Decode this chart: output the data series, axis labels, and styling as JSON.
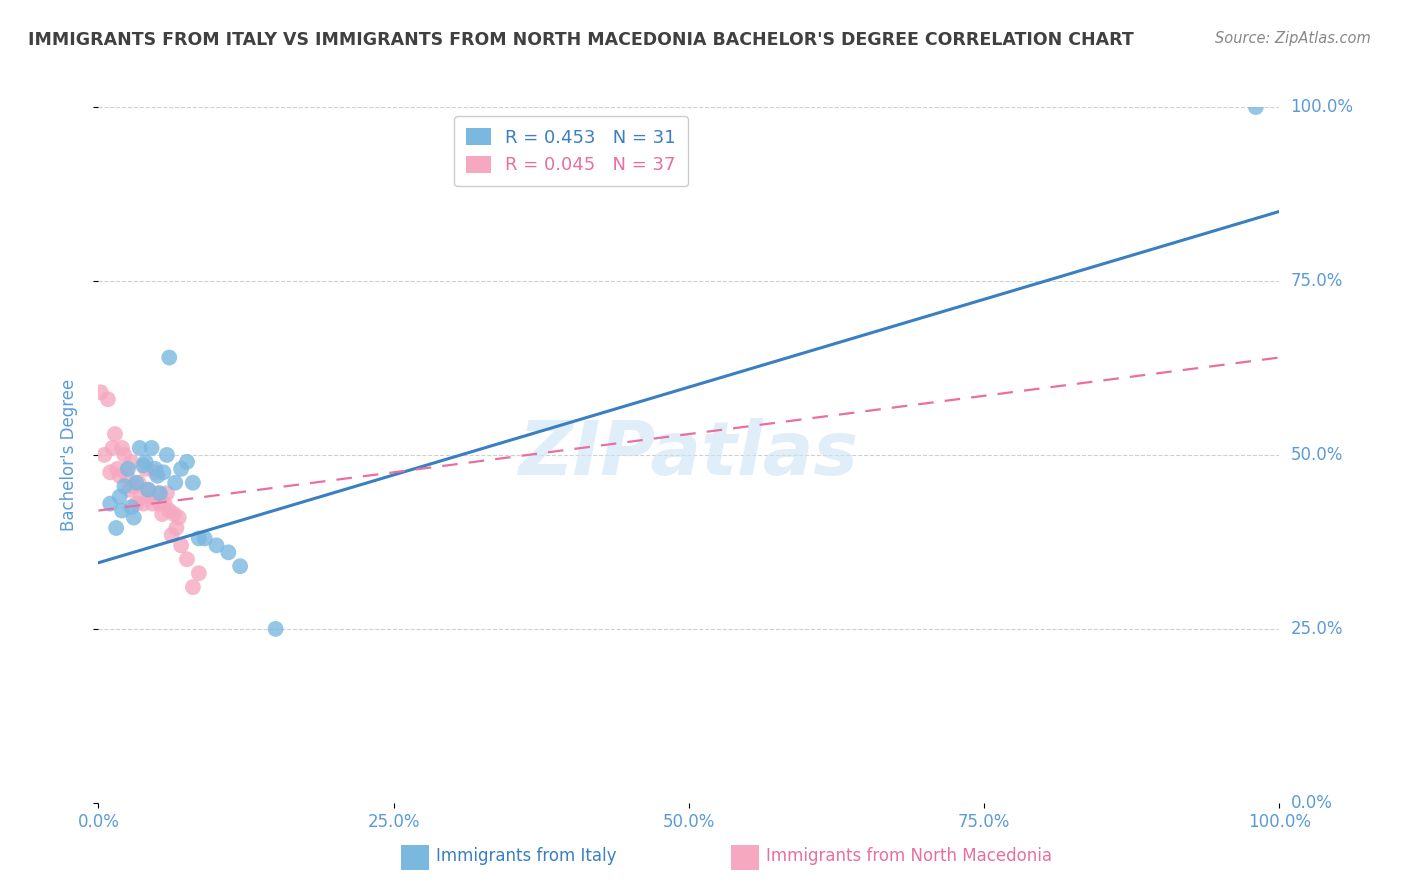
{
  "title": "IMMIGRANTS FROM ITALY VS IMMIGRANTS FROM NORTH MACEDONIA BACHELOR'S DEGREE CORRELATION CHART",
  "source": "Source: ZipAtlas.com",
  "ylabel": "Bachelor's Degree",
  "xlim": [
    0.0,
    1.0
  ],
  "ylim": [
    0.0,
    1.0
  ],
  "xticks": [
    0.0,
    0.25,
    0.5,
    0.75,
    1.0
  ],
  "xtick_labels": [
    "0.0%",
    "25.0%",
    "50.0%",
    "75.0%",
    "100.0%"
  ],
  "ytick_vals": [
    0.0,
    0.25,
    0.5,
    0.75,
    1.0
  ],
  "ytick_labels_right": [
    "0.0%",
    "25.0%",
    "50.0%",
    "75.0%",
    "100.0%"
  ],
  "italy_R": 0.453,
  "italy_N": 31,
  "macedonia_R": 0.045,
  "macedonia_N": 37,
  "italy_color": "#7bb8e0",
  "macedonia_color": "#f5a8c0",
  "italy_line_color": "#3a7fc1",
  "macedonia_line_color": "#e86fa0",
  "watermark": "ZIPatlas",
  "italy_scatter_x": [
    0.01,
    0.015,
    0.018,
    0.02,
    0.022,
    0.025,
    0.028,
    0.03,
    0.032,
    0.035,
    0.038,
    0.04,
    0.042,
    0.045,
    0.048,
    0.05,
    0.052,
    0.055,
    0.058,
    0.06,
    0.065,
    0.07,
    0.075,
    0.08,
    0.085,
    0.09,
    0.1,
    0.11,
    0.12,
    0.15,
    0.98
  ],
  "italy_scatter_y": [
    0.43,
    0.395,
    0.44,
    0.42,
    0.455,
    0.48,
    0.425,
    0.41,
    0.46,
    0.51,
    0.485,
    0.49,
    0.45,
    0.51,
    0.48,
    0.47,
    0.445,
    0.475,
    0.5,
    0.64,
    0.46,
    0.48,
    0.49,
    0.46,
    0.38,
    0.38,
    0.37,
    0.36,
    0.34,
    0.25,
    1.0
  ],
  "macedonia_scatter_x": [
    0.002,
    0.005,
    0.008,
    0.01,
    0.012,
    0.014,
    0.016,
    0.018,
    0.02,
    0.022,
    0.024,
    0.026,
    0.028,
    0.03,
    0.032,
    0.034,
    0.036,
    0.038,
    0.04,
    0.042,
    0.044,
    0.046,
    0.048,
    0.05,
    0.052,
    0.054,
    0.056,
    0.058,
    0.06,
    0.062,
    0.064,
    0.066,
    0.068,
    0.07,
    0.075,
    0.08,
    0.085
  ],
  "macedonia_scatter_y": [
    0.59,
    0.5,
    0.58,
    0.475,
    0.51,
    0.53,
    0.48,
    0.47,
    0.51,
    0.5,
    0.47,
    0.45,
    0.49,
    0.455,
    0.43,
    0.46,
    0.44,
    0.43,
    0.48,
    0.45,
    0.44,
    0.43,
    0.475,
    0.445,
    0.43,
    0.415,
    0.43,
    0.445,
    0.42,
    0.385,
    0.415,
    0.395,
    0.41,
    0.37,
    0.35,
    0.31,
    0.33
  ],
  "italy_line_x0": 0.0,
  "italy_line_y0": 0.345,
  "italy_line_x1": 1.0,
  "italy_line_y1": 0.85,
  "mac_line_x0": 0.0,
  "mac_line_y0": 0.42,
  "mac_line_x1": 1.0,
  "mac_line_y1": 0.64,
  "background_color": "#ffffff",
  "grid_color": "#d0d0d0",
  "title_color": "#404040",
  "tick_label_color": "#5b9bd5",
  "ylabel_color": "#5b9bd5"
}
